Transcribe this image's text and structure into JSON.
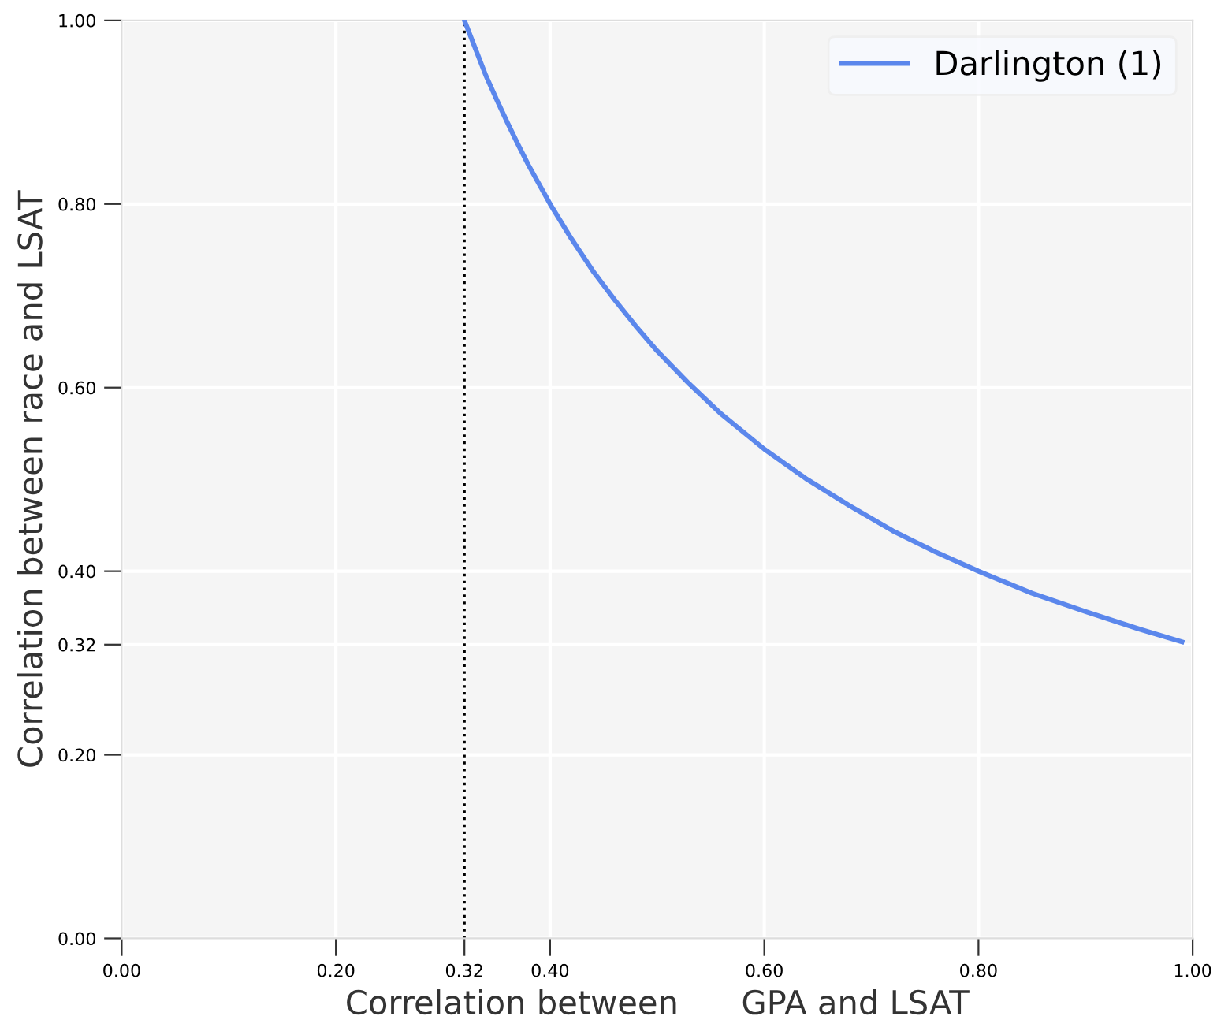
{
  "chart_data": {
    "type": "line",
    "xlabel": "Correlation between      GPA and LSAT",
    "ylabel": "Correlation between race and LSAT",
    "x": [
      0.32,
      0.33,
      0.34,
      0.35,
      0.36,
      0.37,
      0.38,
      0.39,
      0.4,
      0.42,
      0.44,
      0.46,
      0.48,
      0.5,
      0.53,
      0.56,
      0.6,
      0.64,
      0.68,
      0.72,
      0.76,
      0.8,
      0.85,
      0.9,
      0.95,
      0.99
    ],
    "series": [
      {
        "name": "Darlington (1)",
        "color": "#5b87ec",
        "values": [
          1.0,
          0.97,
          0.94,
          0.914,
          0.889,
          0.865,
          0.842,
          0.821,
          0.8,
          0.762,
          0.727,
          0.696,
          0.667,
          0.64,
          0.604,
          0.571,
          0.533,
          0.5,
          0.471,
          0.444,
          0.421,
          0.4,
          0.376,
          0.356,
          0.337,
          0.323
        ]
      }
    ],
    "xlim": [
      0,
      1
    ],
    "ylim": [
      0,
      1
    ],
    "xticks": [
      {
        "value": 0,
        "label": "0.00"
      },
      {
        "value": 0.2,
        "label": "0.20"
      },
      {
        "value": 0.32,
        "label": "0.32"
      },
      {
        "value": 0.4,
        "label": "0.40"
      },
      {
        "value": 0.6,
        "label": "0.60"
      },
      {
        "value": 0.8,
        "label": "0.80"
      },
      {
        "value": 1,
        "label": "1.00"
      }
    ],
    "yticks": [
      {
        "value": 0,
        "label": "0.00"
      },
      {
        "value": 0.2,
        "label": "0.20"
      },
      {
        "value": 0.32,
        "label": "0.32"
      },
      {
        "value": 0.4,
        "label": "0.40"
      },
      {
        "value": 0.6,
        "label": "0.60"
      },
      {
        "value": 0.8,
        "label": "0.80"
      },
      {
        "value": 1,
        "label": "1.00"
      }
    ],
    "ref_lines": [
      {
        "axis": "x",
        "value": 0.32,
        "color": "#000000",
        "line_style": "dotted"
      }
    ],
    "grid": true,
    "legend": "top right",
    "marker": "none",
    "line_style": "solid"
  }
}
